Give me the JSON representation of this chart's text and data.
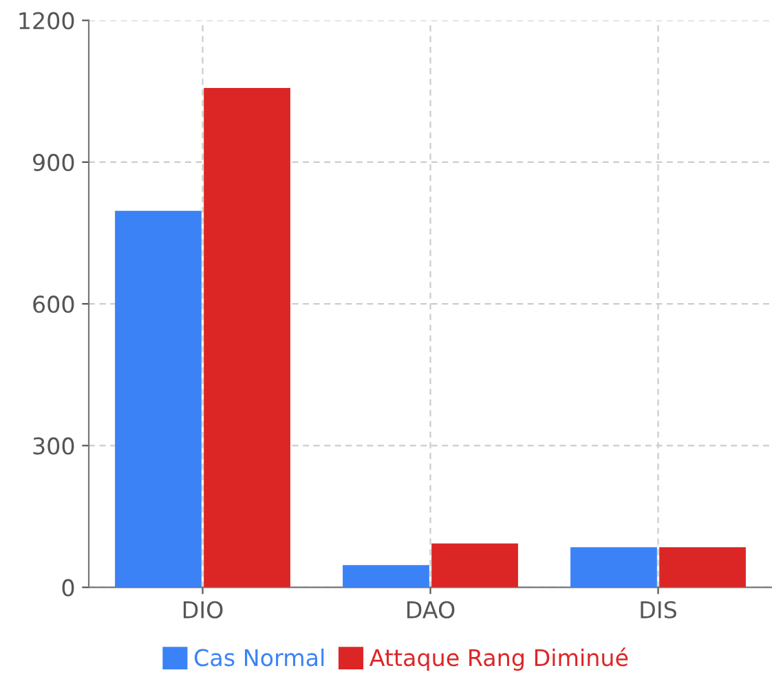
{
  "chart_data": {
    "type": "bar",
    "categories": [
      "DIO",
      "DAO",
      "DIS"
    ],
    "series": [
      {
        "name": "Cas Normal",
        "color": "#3b82f6",
        "values": [
          797,
          47,
          85
        ]
      },
      {
        "name": "Attaque Rang Diminué",
        "color": "#dc2626",
        "values": [
          1057,
          93,
          85
        ]
      }
    ],
    "ylim": [
      0,
      1200
    ],
    "yticks": [
      0,
      300,
      600,
      900,
      1200
    ],
    "grid": true,
    "legend": "bottom"
  }
}
